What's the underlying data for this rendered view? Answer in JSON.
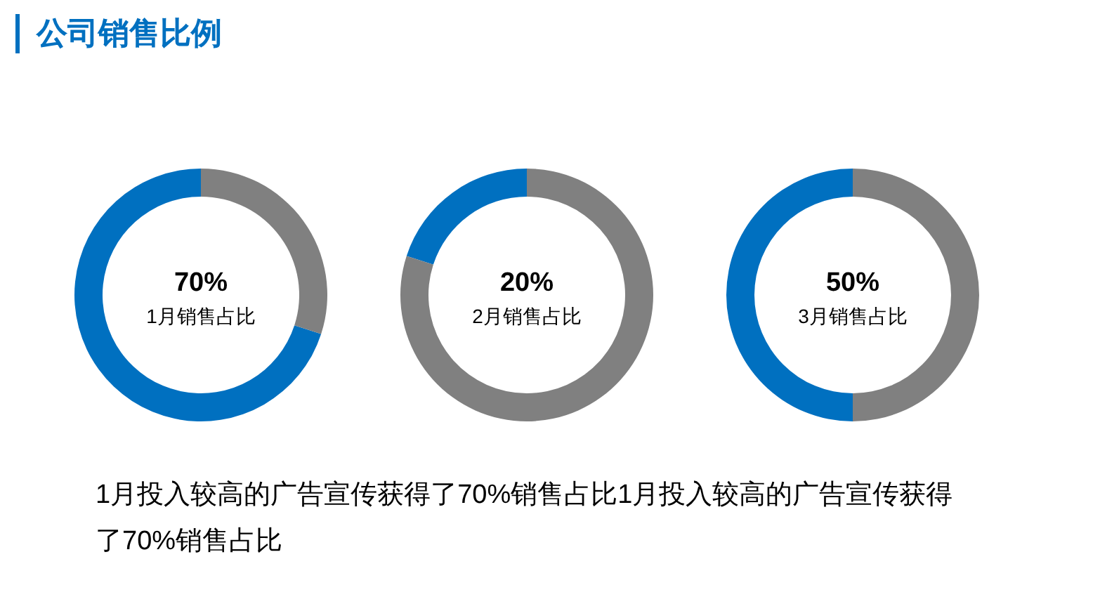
{
  "chart_data": [
    {
      "type": "donut",
      "title": "公司销售比例",
      "categories": [
        "1月销售占比",
        null
      ],
      "values": [
        70,
        30
      ],
      "colors": [
        "#0070c0",
        "#808080"
      ],
      "value_labels": [
        "70%",
        null
      ],
      "annotations": [
        "1月投入较高的广告宣传获得了70%销售占比1月投入较高的广告宣传获得了70%销售占比"
      ]
    },
    {
      "type": "donut",
      "categories": [
        "2月销售占比",
        null
      ],
      "values": [
        20,
        80
      ],
      "colors": [
        "#0070c0",
        "#808080"
      ],
      "value_labels": [
        "20%",
        null
      ]
    },
    {
      "type": "donut",
      "categories": [
        "3月销售占比",
        null
      ],
      "values": [
        50,
        50
      ],
      "colors": [
        "#0070c0",
        "#808080"
      ],
      "value_labels": [
        "50%",
        null
      ]
    }
  ]
}
